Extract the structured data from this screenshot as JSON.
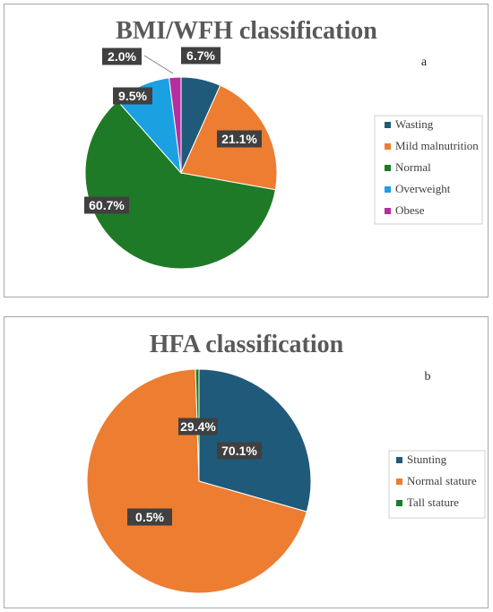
{
  "chart_data": [
    {
      "type": "pie",
      "title": "BMI/WFH classification",
      "panel_label": "a",
      "legend_position": "right",
      "categories": [
        "Wasting",
        "Mild malnutrition",
        "Normal",
        "Overweight",
        "Obese"
      ],
      "values": [
        6.7,
        21.1,
        60.7,
        9.5,
        2.0
      ],
      "labels": [
        "6.7%",
        "21.1%",
        "60.7%",
        "9.5%",
        "2.0%"
      ],
      "colors": [
        "#1f5a7a",
        "#ed7d31",
        "#1e7a26",
        "#1ba1e2",
        "#b52ea0"
      ]
    },
    {
      "type": "pie",
      "title": "HFA classification",
      "panel_label": "b",
      "legend_position": "right",
      "categories": [
        "Stunting",
        "Normal stature",
        "Tall stature"
      ],
      "values": [
        29.4,
        70.1,
        0.5
      ],
      "labels": [
        "29.4%",
        "70.1%",
        "0.5%"
      ],
      "colors": [
        "#1f5a7a",
        "#ed7d31",
        "#1e7a26"
      ]
    }
  ]
}
